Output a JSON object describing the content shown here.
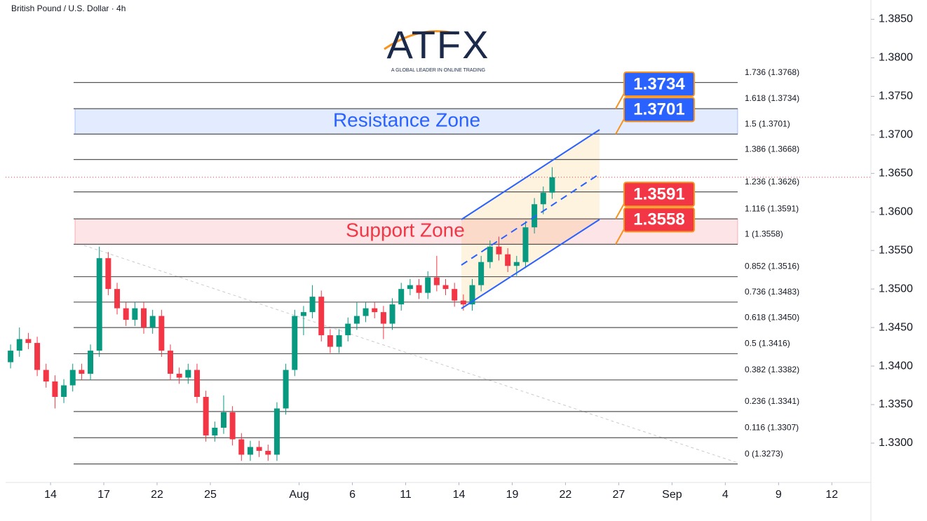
{
  "header": "British Pound / U.S. Dollar · 4h",
  "logo": {
    "name": "ATFX",
    "tagline": "A GLOBAL LEADER IN ONLINE TRADING"
  },
  "chart_data": {
    "type": "candlestick",
    "up_color": "#089981",
    "down_color": "#f23645",
    "xlim": [
      -2.53,
      46.2
    ],
    "ylim": [
      1.3249,
      1.3875
    ],
    "xticks": [
      {
        "value": 0,
        "label": "14"
      },
      {
        "value": 3,
        "label": "17"
      },
      {
        "value": 6,
        "label": "22"
      },
      {
        "value": 9,
        "label": "25"
      },
      {
        "value": 14,
        "label": "Aug"
      },
      {
        "value": 17,
        "label": "6"
      },
      {
        "value": 20,
        "label": "11"
      },
      {
        "value": 23,
        "label": "14"
      },
      {
        "value": 26,
        "label": "19"
      },
      {
        "value": 29,
        "label": "22"
      },
      {
        "value": 32,
        "label": "27"
      },
      {
        "value": 35,
        "label": "Sep"
      },
      {
        "value": 38,
        "label": "4"
      },
      {
        "value": 41,
        "label": "9"
      },
      {
        "value": 44,
        "label": "12"
      }
    ],
    "yticks": [
      {
        "value": 1.385,
        "label": "1.3850"
      },
      {
        "value": 1.38,
        "label": "1.3800"
      },
      {
        "value": 1.375,
        "label": "1.3750"
      },
      {
        "value": 1.37,
        "label": "1.3700"
      },
      {
        "value": 1.365,
        "label": "1.3650"
      },
      {
        "value": 1.36,
        "label": "1.3600"
      },
      {
        "value": 1.355,
        "label": "1.3550"
      },
      {
        "value": 1.35,
        "label": "1.3500"
      },
      {
        "value": 1.345,
        "label": "1.3450"
      },
      {
        "value": 1.34,
        "label": "1.3400"
      },
      {
        "value": 1.335,
        "label": "1.3350"
      },
      {
        "value": 1.33,
        "label": "1.3300"
      }
    ],
    "candles": [
      [
        1.3405,
        1.3428,
        1.3397,
        1.342
      ],
      [
        1.342,
        1.345,
        1.3412,
        1.3435
      ],
      [
        1.3435,
        1.3443,
        1.3422,
        1.343
      ],
      [
        1.343,
        1.3438,
        1.3387,
        1.3395
      ],
      [
        1.3395,
        1.3403,
        1.3372,
        1.338
      ],
      [
        1.338,
        1.3388,
        1.3345,
        1.336
      ],
      [
        1.336,
        1.3383,
        1.3352,
        1.3375
      ],
      [
        1.3375,
        1.3403,
        1.3367,
        1.3395
      ],
      [
        1.3395,
        1.3403,
        1.3382,
        1.339
      ],
      [
        1.339,
        1.3428,
        1.3382,
        1.342
      ],
      [
        1.342,
        1.3555,
        1.3412,
        1.354
      ],
      [
        1.354,
        1.3548,
        1.3492,
        1.35
      ],
      [
        1.35,
        1.3508,
        1.3467,
        1.3475
      ],
      [
        1.3475,
        1.3483,
        1.3452,
        1.346
      ],
      [
        1.346,
        1.3483,
        1.3452,
        1.3475
      ],
      [
        1.3475,
        1.3483,
        1.3442,
        1.345
      ],
      [
        1.345,
        1.3473,
        1.3442,
        1.3465
      ],
      [
        1.3465,
        1.3473,
        1.3412,
        1.342
      ],
      [
        1.342,
        1.3428,
        1.3382,
        1.339
      ],
      [
        1.339,
        1.3398,
        1.3377,
        1.3385
      ],
      [
        1.3385,
        1.3403,
        1.3377,
        1.3395
      ],
      [
        1.3395,
        1.3403,
        1.3352,
        1.336
      ],
      [
        1.336,
        1.3368,
        1.3302,
        1.331
      ],
      [
        1.331,
        1.3328,
        1.3302,
        1.332
      ],
      [
        1.332,
        1.3362,
        1.3312,
        1.334
      ],
      [
        1.334,
        1.3348,
        1.3297,
        1.3305
      ],
      [
        1.3305,
        1.3313,
        1.3277,
        1.3285
      ],
      [
        1.3285,
        1.3303,
        1.3277,
        1.3295
      ],
      [
        1.3295,
        1.3303,
        1.3282,
        1.329
      ],
      [
        1.329,
        1.3298,
        1.3277,
        1.3285
      ],
      [
        1.3285,
        1.3353,
        1.3277,
        1.3345
      ],
      [
        1.3345,
        1.3403,
        1.3337,
        1.3395
      ],
      [
        1.3395,
        1.3473,
        1.3387,
        1.3465
      ],
      [
        1.3465,
        1.3478,
        1.344,
        1.347
      ],
      [
        1.347,
        1.3505,
        1.3462,
        1.349
      ],
      [
        1.349,
        1.3498,
        1.3432,
        1.344
      ],
      [
        1.344,
        1.3448,
        1.3417,
        1.3425
      ],
      [
        1.3425,
        1.3448,
        1.3417,
        1.344
      ],
      [
        1.344,
        1.3463,
        1.3432,
        1.3455
      ],
      [
        1.3455,
        1.3483,
        1.3447,
        1.3465
      ],
      [
        1.3465,
        1.3483,
        1.3457,
        1.3475
      ],
      [
        1.3475,
        1.3483,
        1.3462,
        1.347
      ],
      [
        1.347,
        1.3478,
        1.3435,
        1.3455
      ],
      [
        1.3455,
        1.3488,
        1.3447,
        1.348
      ],
      [
        1.348,
        1.3508,
        1.3472,
        1.35
      ],
      [
        1.35,
        1.3513,
        1.3492,
        1.3505
      ],
      [
        1.3505,
        1.3513,
        1.3487,
        1.3495
      ],
      [
        1.3495,
        1.3523,
        1.3487,
        1.3515
      ],
      [
        1.3515,
        1.3543,
        1.3497,
        1.3505
      ],
      [
        1.3505,
        1.3513,
        1.3492,
        1.35
      ],
      [
        1.35,
        1.3508,
        1.3477,
        1.3485
      ],
      [
        1.3485,
        1.3493,
        1.3472,
        1.348
      ],
      [
        1.348,
        1.3513,
        1.3472,
        1.3505
      ],
      [
        1.3505,
        1.3543,
        1.3497,
        1.3535
      ],
      [
        1.3535,
        1.3563,
        1.3527,
        1.3555
      ],
      [
        1.3555,
        1.3568,
        1.3537,
        1.3545
      ],
      [
        1.3545,
        1.3553,
        1.3522,
        1.353
      ],
      [
        1.353,
        1.3543,
        1.3517,
        1.3535
      ],
      [
        1.3535,
        1.3588,
        1.3527,
        1.358
      ],
      [
        1.358,
        1.3618,
        1.3572,
        1.361
      ],
      [
        1.361,
        1.3633,
        1.3597,
        1.3625
      ],
      [
        1.3625,
        1.3658,
        1.3617,
        1.3645
      ]
    ],
    "levels": [
      {
        "value": 1.3768,
        "label": "1.736 (1.3768)"
      },
      {
        "value": 1.3734,
        "label": "1.618 (1.3734)"
      },
      {
        "value": 1.3701,
        "label": "1.5 (1.3701)"
      },
      {
        "value": 1.3668,
        "label": "1.386 (1.3668)"
      },
      {
        "value": 1.3626,
        "label": "1.236 (1.3626)"
      },
      {
        "value": 1.3591,
        "label": "1.116 (1.3591)"
      },
      {
        "value": 1.3558,
        "label": "1 (1.3558)"
      },
      {
        "value": 1.3516,
        "label": "0.852 (1.3516)"
      },
      {
        "value": 1.3483,
        "label": "0.736 (1.3483)"
      },
      {
        "value": 1.345,
        "label": "0.618 (1.3450)"
      },
      {
        "value": 1.3416,
        "label": "0.5 (1.3416)"
      },
      {
        "value": 1.3382,
        "label": "0.382 (1.3382)"
      },
      {
        "value": 1.3341,
        "label": "0.236 (1.3341)"
      },
      {
        "value": 1.3307,
        "label": "0.116 (1.3307)"
      },
      {
        "value": 1.3273,
        "label": "0 (1.3273)"
      }
    ],
    "zones": [
      {
        "label": "Resistance Zone",
        "from": 1.3701,
        "to": 1.3734,
        "color": "#2962ff"
      },
      {
        "label": "Support Zone",
        "from": 1.3558,
        "to": 1.3591,
        "color": "#f23645"
      }
    ],
    "price_tags": [
      {
        "value": 1.3734,
        "color": "#2962ff"
      },
      {
        "value": 1.3701,
        "color": "#2962ff"
      },
      {
        "value": 1.3591,
        "color": "#f23645"
      },
      {
        "value": 1.3558,
        "color": "#f23645"
      }
    ]
  }
}
